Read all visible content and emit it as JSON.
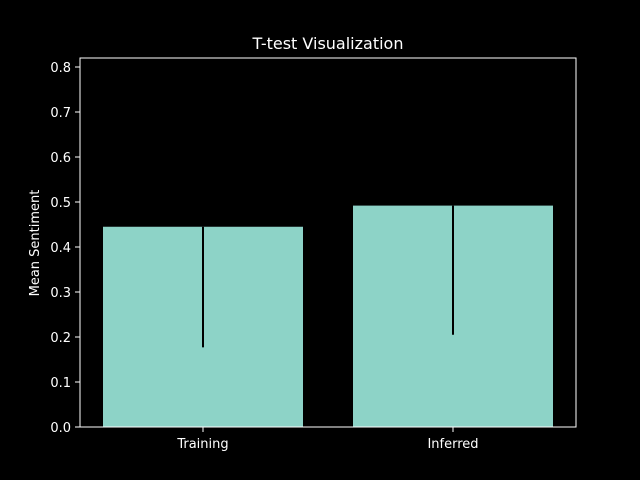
{
  "colors": {
    "background": "#000000",
    "bar": "#8dd3c7",
    "foreground": "#ffffff",
    "error_bar": "#000000"
  },
  "chart_data": {
    "type": "bar",
    "title": "T-test Visualization",
    "xlabel": "",
    "ylabel": "Mean Sentiment",
    "categories": [
      "Training",
      "Inferred"
    ],
    "values": [
      0.445,
      0.492
    ],
    "error_lower": [
      0.177,
      0.205
    ],
    "ylim": [
      0.0,
      0.82
    ],
    "y_ticks": [
      0.0,
      0.1,
      0.2,
      0.3,
      0.4,
      0.5,
      0.6,
      0.7,
      0.8
    ],
    "y_tick_labels": [
      "0.0",
      "0.1",
      "0.2",
      "0.3",
      "0.4",
      "0.5",
      "0.6",
      "0.7",
      "0.8"
    ],
    "grid": false,
    "legend": "none"
  }
}
